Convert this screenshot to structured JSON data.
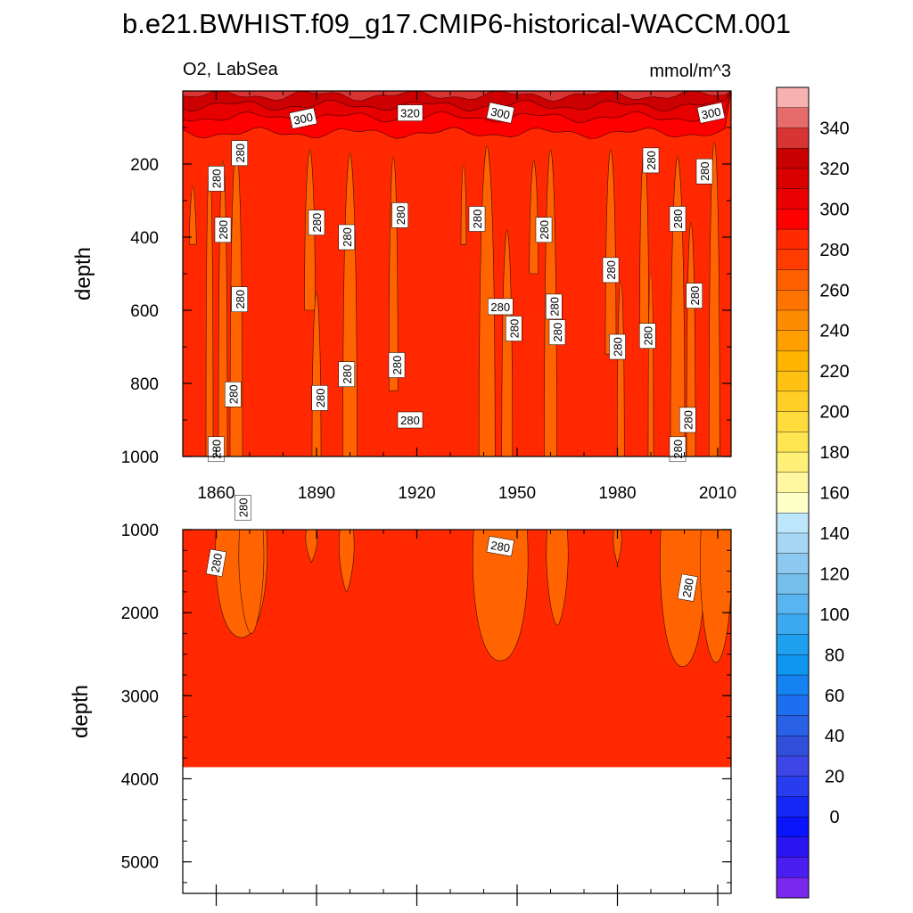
{
  "figure": {
    "title": "b.e21.BWHIST.f09_g17.CMIP6-historical-WACCM.001",
    "variable_label": "O2, LabSea",
    "units_label": "mmol/m^3",
    "colors": {
      "background_field": "#ff2800",
      "orange_plume": "#ff6400",
      "surface_dark": "#cc0000",
      "surface_mid": "#e60000",
      "surface_bright": "#ff0000"
    }
  },
  "chart_data": [
    {
      "type": "contour",
      "panel": "upper",
      "ylabel": "depth",
      "xlabel": "",
      "xlim": [
        1850,
        2014
      ],
      "ylim": [
        1000,
        0
      ],
      "x_ticks": [
        1860,
        1890,
        1920,
        1950,
        1980,
        2010
      ],
      "y_ticks": [
        200,
        400,
        600,
        800,
        1000
      ],
      "background_value": 280,
      "contour_labels": [
        {
          "x": 1860,
          "depth": 240,
          "value": "280",
          "rotation": -90
        },
        {
          "x": 1867,
          "depth": 170,
          "value": "280",
          "rotation": -90
        },
        {
          "x": 1862,
          "depth": 380,
          "value": "280",
          "rotation": -90
        },
        {
          "x": 1867,
          "depth": 570,
          "value": "280",
          "rotation": -90
        },
        {
          "x": 1865,
          "depth": 830,
          "value": "280",
          "rotation": -90
        },
        {
          "x": 1860,
          "depth": 980,
          "value": "280",
          "rotation": -90
        },
        {
          "x": 1868,
          "depth": 1140,
          "value": "280",
          "rotation": -90
        },
        {
          "x": 1864,
          "depth": 1310,
          "value": "280",
          "rotation": -90
        },
        {
          "x": 1890,
          "depth": 360,
          "value": "280",
          "rotation": -90
        },
        {
          "x": 1899,
          "depth": 400,
          "value": "280",
          "rotation": -90
        },
        {
          "x": 1891,
          "depth": 840,
          "value": "280",
          "rotation": -90
        },
        {
          "x": 1899,
          "depth": 775,
          "value": "280",
          "rotation": -90
        },
        {
          "x": 1915,
          "depth": 340,
          "value": "280",
          "rotation": -90
        },
        {
          "x": 1914,
          "depth": 750,
          "value": "280",
          "rotation": -90
        },
        {
          "x": 1918,
          "depth": 900,
          "value": "280",
          "rotation": 0
        },
        {
          "x": 1938,
          "depth": 350,
          "value": "280",
          "rotation": -90
        },
        {
          "x": 1945,
          "depth": 590,
          "value": "280",
          "rotation": 0
        },
        {
          "x": 1949,
          "depth": 650,
          "value": "280",
          "rotation": -90
        },
        {
          "x": 1958,
          "depth": 380,
          "value": "280",
          "rotation": -90
        },
        {
          "x": 1961,
          "depth": 590,
          "value": "280",
          "rotation": -90
        },
        {
          "x": 1962,
          "depth": 660,
          "value": "280",
          "rotation": -90
        },
        {
          "x": 1978,
          "depth": 490,
          "value": "280",
          "rotation": -90
        },
        {
          "x": 1980,
          "depth": 700,
          "value": "280",
          "rotation": -90
        },
        {
          "x": 1990,
          "depth": 190,
          "value": "280",
          "rotation": -90
        },
        {
          "x": 1989,
          "depth": 670,
          "value": "280",
          "rotation": -90
        },
        {
          "x": 1998,
          "depth": 350,
          "value": "280",
          "rotation": -90
        },
        {
          "x": 2003,
          "depth": 560,
          "value": "280",
          "rotation": -90
        },
        {
          "x": 2001,
          "depth": 900,
          "value": "280",
          "rotation": -90
        },
        {
          "x": 1998,
          "depth": 980,
          "value": "280",
          "rotation": -90
        },
        {
          "x": 2006,
          "depth": 220,
          "value": "280",
          "rotation": -90
        },
        {
          "x": 1886,
          "depth": 75,
          "value": "300",
          "rotation": -12
        },
        {
          "x": 1918,
          "depth": 60,
          "value": "320",
          "rotation": 0
        },
        {
          "x": 1945,
          "depth": 60,
          "value": "300",
          "rotation": 12
        },
        {
          "x": 2008,
          "depth": 60,
          "value": "300",
          "rotation": -12
        }
      ]
    },
    {
      "type": "contour",
      "panel": "lower",
      "ylabel": "depth",
      "xlabel": "",
      "xlim": [
        1850,
        2014
      ],
      "ylim": [
        5380,
        1000
      ],
      "y_ticks": [
        1000,
        2000,
        3000,
        4000,
        5000
      ],
      "background_value": 280,
      "bottom_depth": 3860,
      "contour_labels": [
        {
          "x": 1860,
          "depth": 1400,
          "value": "280",
          "rotation": -80
        },
        {
          "x": 1945,
          "depth": 1200,
          "value": "280",
          "rotation": 10
        },
        {
          "x": 2001,
          "depth": 1700,
          "value": "280",
          "rotation": -80
        }
      ]
    }
  ],
  "colorbar": {
    "label_values": [
      "340",
      "320",
      "300",
      "280",
      "260",
      "240",
      "220",
      "200",
      "180",
      "160",
      "140",
      "120",
      "100",
      "80",
      "60",
      "40",
      "20",
      "0"
    ],
    "colors": [
      "#f7b1b1",
      "#e76b6b",
      "#d93434",
      "#c80000",
      "#d90000",
      "#ea0000",
      "#ff0000",
      "#ff2a00",
      "#ff3c00",
      "#ff6000",
      "#ff7400",
      "#ff8c00",
      "#ffa000",
      "#ffb400",
      "#ffc214",
      "#ffcf28",
      "#ffdc3c",
      "#ffe650",
      "#fff078",
      "#fff8a0",
      "#ffffc8",
      "#bee6fa",
      "#a5d7f5",
      "#8cc8f0",
      "#73beeb",
      "#5ab4f0",
      "#3caaf0",
      "#1ea0f0",
      "#0f96f0",
      "#1482f0",
      "#1e6ef0",
      "#2860e6",
      "#3050dc",
      "#3c46e6",
      "#283cf0",
      "#1428f5",
      "#0a14fa",
      "#2a14f0",
      "#4a1ef0",
      "#7a28f0"
    ]
  }
}
